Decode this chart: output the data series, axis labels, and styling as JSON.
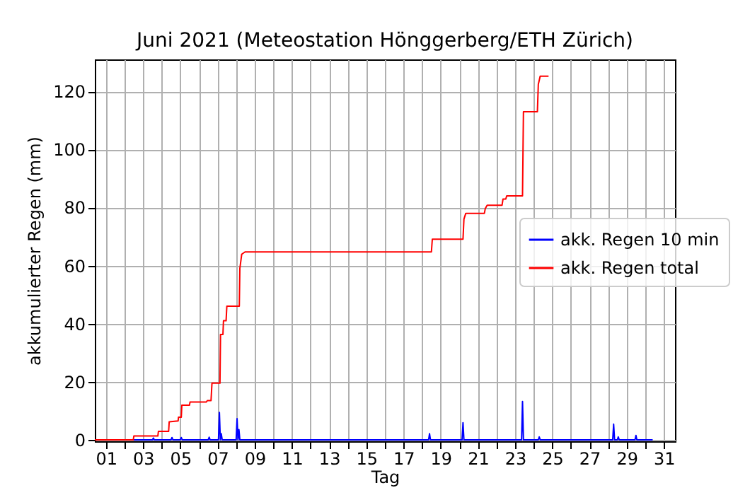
{
  "chart_data": {
    "type": "line",
    "title": "Juni 2021  (Meteostation Hönggerberg/ETH Zürich)",
    "xlabel": "Tag",
    "ylabel": "akkumulierter Regen (mm)",
    "xlim": [
      0.4,
      31.6
    ],
    "ylim": [
      -0.5,
      131
    ],
    "xticks": [
      {
        "value": 1,
        "label": "01"
      },
      {
        "value": 2,
        "label": null
      },
      {
        "value": 3,
        "label": "03"
      },
      {
        "value": 4,
        "label": null
      },
      {
        "value": 5,
        "label": "05"
      },
      {
        "value": 6,
        "label": null
      },
      {
        "value": 7,
        "label": "07"
      },
      {
        "value": 8,
        "label": null
      },
      {
        "value": 9,
        "label": "09"
      },
      {
        "value": 10,
        "label": null
      },
      {
        "value": 11,
        "label": "11"
      },
      {
        "value": 12,
        "label": null
      },
      {
        "value": 13,
        "label": "13"
      },
      {
        "value": 14,
        "label": null
      },
      {
        "value": 15,
        "label": "15"
      },
      {
        "value": 16,
        "label": null
      },
      {
        "value": 17,
        "label": "17"
      },
      {
        "value": 18,
        "label": null
      },
      {
        "value": 19,
        "label": "19"
      },
      {
        "value": 20,
        "label": null
      },
      {
        "value": 21,
        "label": "21"
      },
      {
        "value": 22,
        "label": null
      },
      {
        "value": 23,
        "label": "23"
      },
      {
        "value": 24,
        "label": null
      },
      {
        "value": 25,
        "label": "25"
      },
      {
        "value": 26,
        "label": null
      },
      {
        "value": 27,
        "label": "27"
      },
      {
        "value": 28,
        "label": null
      },
      {
        "value": 29,
        "label": "29"
      },
      {
        "value": 30,
        "label": null
      },
      {
        "value": 31,
        "label": "31"
      }
    ],
    "yticks": [
      0,
      20,
      40,
      60,
      80,
      100,
      120
    ],
    "grid": true,
    "legend": "right",
    "line_style": "solid",
    "marker": "none",
    "series": [
      {
        "name": "akk. Regen 10 min",
        "color": "#0000ff",
        "x": [
          0.4,
          3.5,
          3.55,
          3.6,
          4.5,
          4.55,
          4.6,
          5.0,
          5.05,
          5.1,
          6.5,
          6.55,
          6.6,
          7.05,
          7.1,
          7.15,
          7.2,
          7.25,
          7.3,
          8.0,
          8.05,
          8.1,
          8.15,
          8.2,
          18.35,
          18.4,
          18.45,
          20.15,
          20.2,
          20.25,
          23.35,
          23.4,
          23.45,
          24.25,
          24.3,
          24.35,
          28.25,
          28.3,
          28.35,
          28.5,
          28.55,
          28.6,
          29.45,
          29.5,
          29.55,
          30.4
        ],
        "values": [
          0,
          0,
          0.6,
          0,
          0,
          0.8,
          0,
          0,
          0.8,
          0,
          0,
          0.9,
          0,
          0,
          9.4,
          0,
          2.1,
          0,
          0,
          0,
          7.3,
          0,
          3.5,
          0,
          0,
          2.1,
          0,
          0,
          5.9,
          0,
          0,
          13.2,
          0,
          0,
          1.0,
          0,
          0,
          5.4,
          0,
          0,
          1.0,
          0,
          0,
          1.5,
          0,
          0
        ]
      },
      {
        "name": "akk. Regen total",
        "color": "#ff0000",
        "x": [
          0.4,
          2.47,
          2.5,
          3.79,
          3.82,
          4.37,
          4.4,
          4.88,
          4.9,
          5.05,
          5.08,
          5.49,
          5.52,
          6.4,
          6.45,
          6.65,
          6.7,
          7.13,
          7.16,
          7.29,
          7.32,
          7.46,
          7.5,
          8.17,
          8.2,
          8.3,
          8.48,
          18.5,
          18.55,
          20.2,
          20.25,
          20.35,
          21.35,
          21.4,
          21.5,
          22.3,
          22.35,
          22.5,
          22.55,
          23.4,
          23.45,
          24.2,
          24.25,
          24.35,
          24.8
        ],
        "values": [
          0,
          0,
          1.3,
          1.3,
          2.9,
          2.9,
          6.2,
          6.5,
          7.8,
          7.8,
          11.9,
          11.9,
          13,
          13,
          13.5,
          13.5,
          19.5,
          19.5,
          36.3,
          36.3,
          41,
          41,
          46,
          46,
          59,
          63.9,
          64.7,
          64.7,
          69.1,
          69.1,
          76,
          78,
          78,
          79.7,
          80.8,
          80.8,
          82.9,
          82.9,
          84,
          84,
          113,
          113,
          122.4,
          125.2,
          125.2
        ]
      }
    ]
  }
}
